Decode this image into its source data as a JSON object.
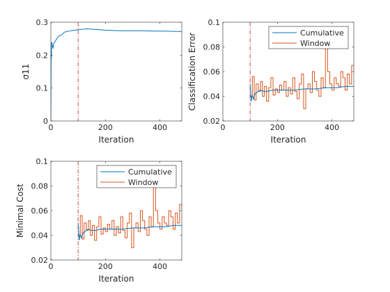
{
  "figure": {
    "colors": {
      "cumulative": "#0072BD",
      "window": "#D95319",
      "threshold": "#C0392B",
      "axis": "#262626"
    }
  },
  "chart_data": [
    {
      "type": "line",
      "xlabel": "Iteration",
      "ylabel": "σ11",
      "xlim": [
        0,
        480
      ],
      "ylim": [
        0,
        0.3
      ],
      "xticks": [
        "0",
        "200",
        "400"
      ],
      "yticks": [
        "0",
        "0.1",
        "0.2",
        "0.3"
      ],
      "grid": false,
      "legend": null,
      "vline_x": 100,
      "series": [
        {
          "key": "sigma",
          "color_key": "cumulative",
          "x": [
            0,
            1,
            2,
            3,
            5,
            8,
            10,
            14,
            18,
            22,
            26,
            30,
            35,
            40,
            45,
            50,
            60,
            70,
            80,
            90,
            100,
            110,
            120,
            130,
            150,
            170,
            200,
            230,
            260,
            300,
            340,
            380,
            420,
            460,
            480
          ],
          "y": [
            0,
            0.21,
            0.19,
            0.24,
            0.23,
            0.22,
            0.235,
            0.24,
            0.245,
            0.25,
            0.255,
            0.258,
            0.26,
            0.262,
            0.266,
            0.27,
            0.272,
            0.274,
            0.275,
            0.276,
            0.277,
            0.278,
            0.279,
            0.28,
            0.279,
            0.278,
            0.276,
            0.275,
            0.274,
            0.274,
            0.274,
            0.273,
            0.273,
            0.272,
            0.272
          ]
        }
      ]
    },
    {
      "type": "line",
      "xlabel": "Iteration",
      "ylabel": "Classification Error",
      "xlim": [
        0,
        480
      ],
      "ylim": [
        0.02,
        0.1
      ],
      "xticks": [
        "0",
        "200",
        "400"
      ],
      "yticks": [
        "0.02",
        "0.04",
        "0.06",
        "0.08",
        "0.1"
      ],
      "grid": false,
      "legend": "top-right",
      "vline_x": 100,
      "series": [
        {
          "key": "cumulative",
          "name": "Cumulative",
          "step": false,
          "x": [
            100,
            104,
            108,
            112,
            118,
            125,
            135,
            150,
            165,
            180,
            200,
            230,
            260,
            300,
            340,
            380,
            420,
            450,
            480
          ],
          "y": [
            0.05,
            0.036,
            0.041,
            0.038,
            0.042,
            0.043,
            0.045,
            0.044,
            0.044,
            0.045,
            0.045,
            0.045,
            0.045,
            0.046,
            0.046,
            0.047,
            0.047,
            0.048,
            0.048
          ]
        },
        {
          "key": "window",
          "name": "Window",
          "step": true,
          "x": [
            100,
            108,
            115,
            122,
            130,
            138,
            145,
            152,
            160,
            168,
            176,
            184,
            192,
            200,
            208,
            216,
            224,
            232,
            240,
            248,
            256,
            264,
            272,
            280,
            288,
            296,
            304,
            312,
            320,
            328,
            336,
            344,
            352,
            360,
            368,
            376,
            384,
            392,
            400,
            408,
            416,
            424,
            432,
            440,
            448,
            456,
            464,
            472,
            480
          ],
          "y": [
            0.04,
            0.056,
            0.037,
            0.05,
            0.044,
            0.052,
            0.04,
            0.048,
            0.036,
            0.047,
            0.055,
            0.041,
            0.046,
            0.043,
            0.049,
            0.045,
            0.052,
            0.04,
            0.047,
            0.042,
            0.055,
            0.044,
            0.038,
            0.05,
            0.058,
            0.03,
            0.046,
            0.05,
            0.043,
            0.06,
            0.052,
            0.045,
            0.04,
            0.055,
            0.047,
            0.085,
            0.06,
            0.05,
            0.045,
            0.055,
            0.05,
            0.048,
            0.06,
            0.055,
            0.045,
            0.058,
            0.05,
            0.065,
            0.062
          ]
        }
      ]
    },
    {
      "type": "line",
      "xlabel": "Iteration",
      "ylabel": "Minimal Cost",
      "xlim": [
        0,
        480
      ],
      "ylim": [
        0.02,
        0.1
      ],
      "xticks": [
        "0",
        "200",
        "400"
      ],
      "yticks": [
        "0.02",
        "0.04",
        "0.06",
        "0.08",
        "0.1"
      ],
      "grid": false,
      "legend": "top-right",
      "vline_x": 100,
      "series": [
        {
          "key": "cumulative",
          "name": "Cumulative",
          "step": false,
          "x": [
            100,
            104,
            108,
            112,
            118,
            125,
            135,
            150,
            165,
            180,
            200,
            230,
            260,
            300,
            340,
            380,
            420,
            450,
            480
          ],
          "y": [
            0.05,
            0.036,
            0.041,
            0.038,
            0.042,
            0.043,
            0.045,
            0.044,
            0.044,
            0.045,
            0.045,
            0.045,
            0.045,
            0.046,
            0.046,
            0.047,
            0.047,
            0.048,
            0.048
          ]
        },
        {
          "key": "window",
          "name": "Window",
          "step": true,
          "x": [
            100,
            108,
            115,
            122,
            130,
            138,
            145,
            152,
            160,
            168,
            176,
            184,
            192,
            200,
            208,
            216,
            224,
            232,
            240,
            248,
            256,
            264,
            272,
            280,
            288,
            296,
            304,
            312,
            320,
            328,
            336,
            344,
            352,
            360,
            368,
            376,
            384,
            392,
            400,
            408,
            416,
            424,
            432,
            440,
            448,
            456,
            464,
            472,
            480
          ],
          "y": [
            0.04,
            0.056,
            0.037,
            0.05,
            0.044,
            0.052,
            0.04,
            0.048,
            0.036,
            0.047,
            0.055,
            0.041,
            0.046,
            0.043,
            0.049,
            0.045,
            0.052,
            0.04,
            0.047,
            0.042,
            0.055,
            0.044,
            0.038,
            0.05,
            0.058,
            0.03,
            0.046,
            0.05,
            0.043,
            0.06,
            0.052,
            0.045,
            0.04,
            0.055,
            0.047,
            0.085,
            0.06,
            0.05,
            0.045,
            0.055,
            0.05,
            0.048,
            0.06,
            0.055,
            0.045,
            0.058,
            0.05,
            0.065,
            0.062
          ]
        }
      ]
    }
  ]
}
